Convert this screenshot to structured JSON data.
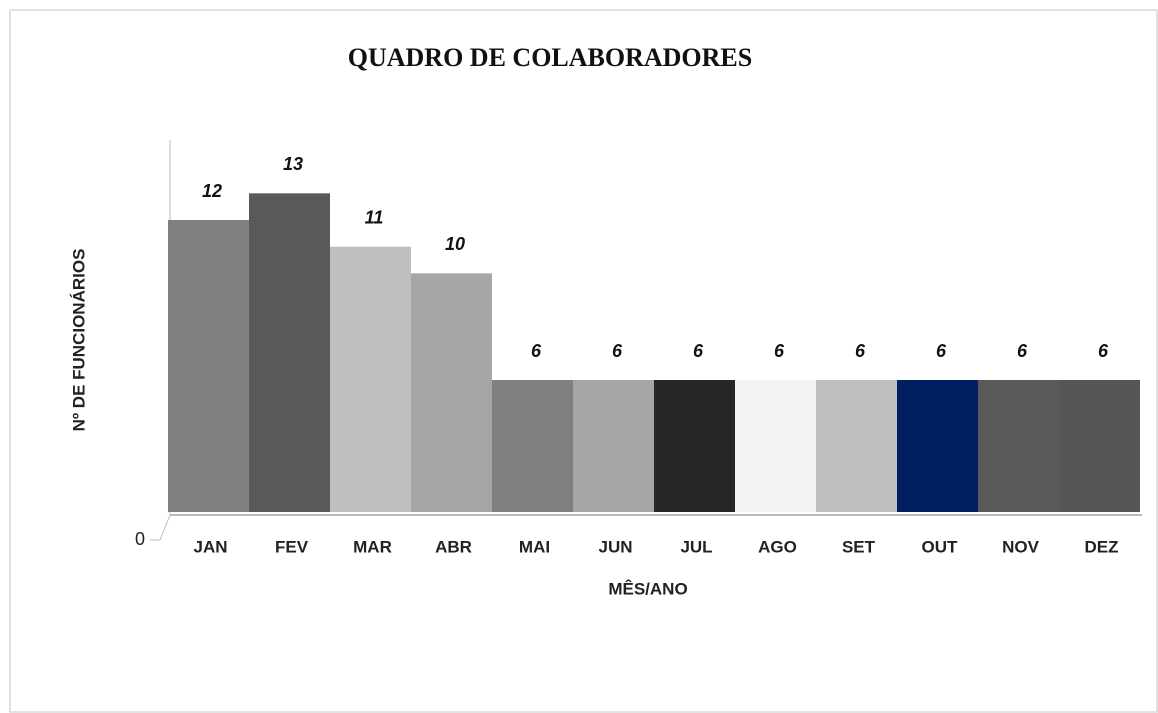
{
  "chart_data": {
    "type": "bar",
    "title": "QUADRO DE COLABORADORES",
    "x_label": "MÊS/ANO",
    "y_label": "Nº DE FUNCIONÁRIOS",
    "categories": [
      "JAN",
      "FEV",
      "MAR",
      "ABR",
      "MAI",
      "JUN",
      "JUL",
      "AGO",
      "SET",
      "OUT",
      "NOV",
      "DEZ"
    ],
    "values": [
      12,
      13,
      11,
      10,
      6,
      6,
      6,
      6,
      6,
      6,
      6,
      6
    ],
    "colors": [
      "#808080",
      "#595959",
      "#bfbfbf",
      "#a6a6a6",
      "#808080",
      "#a6a6a6",
      "#262626",
      "#f2f2f2",
      "#bfbfbf",
      "#002060",
      "#595959",
      "#555555"
    ],
    "ylim": [
      0,
      15
    ],
    "yticks": [
      0
    ]
  }
}
